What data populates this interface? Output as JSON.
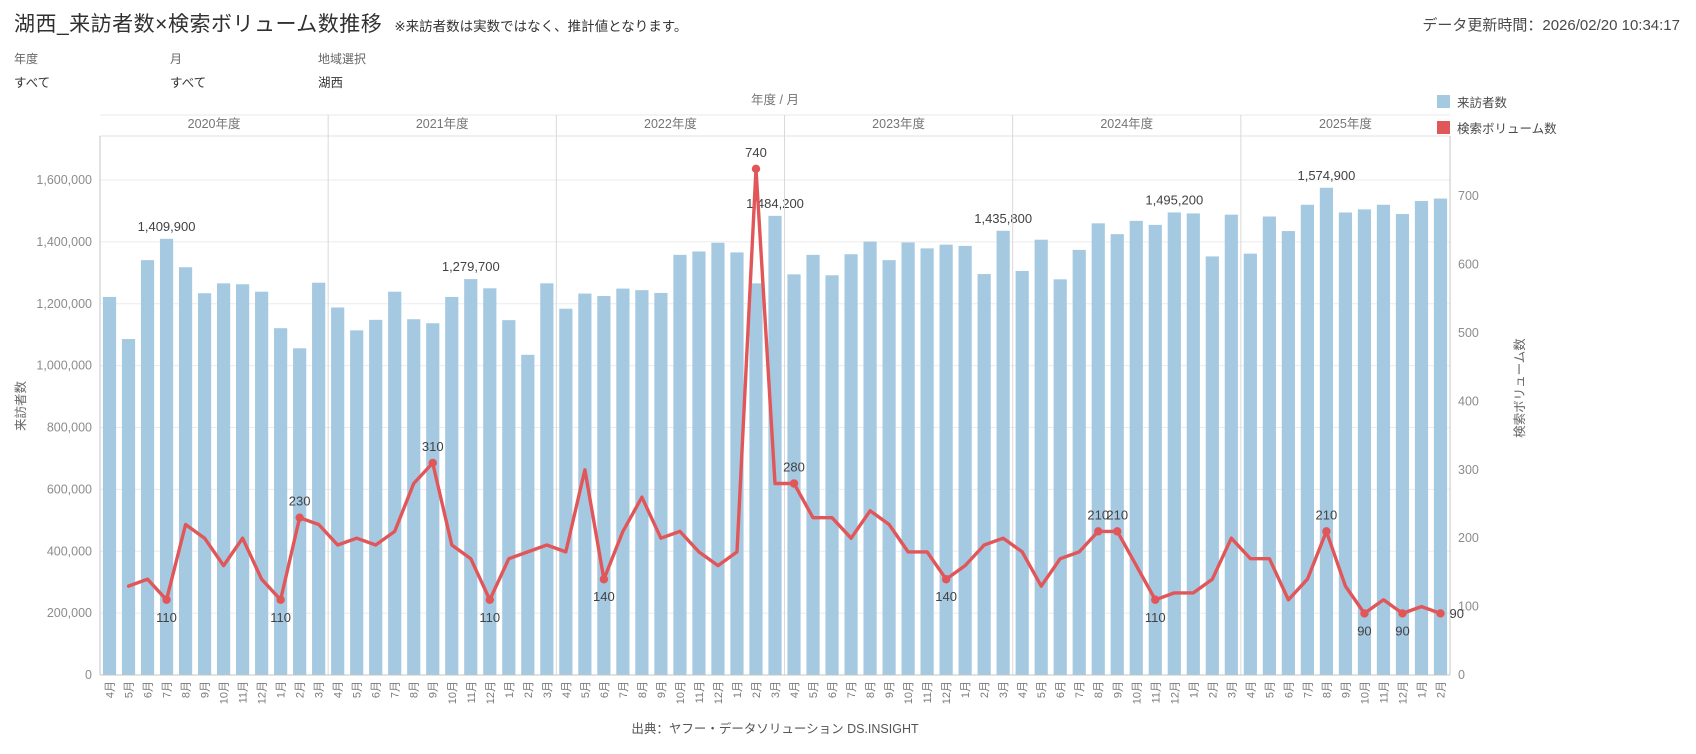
{
  "header": {
    "title": "湖西_来訪者数×検索ボリューム数推移",
    "note": "※来訪者数は実数ではなく、推計値となります。",
    "updated": "データ更新時間：2026/02/20 10:34:17"
  },
  "filters": [
    {
      "label": "年度",
      "value": "すべて"
    },
    {
      "label": "月",
      "value": "すべて"
    },
    {
      "label": "地域選択",
      "value": "湖西"
    }
  ],
  "chart_data": {
    "type": "bar+line-dual-axis",
    "column_header": "年度 / 月",
    "source": "出典：ヤフー・データソリューション DS.INSIGHT",
    "colors": {
      "bar": "#a6c9e2",
      "line": "#e15759",
      "grid": "#ebebeb",
      "axis": "#c4c4c4",
      "separator": "#d9d9d9",
      "annotation": "#424242",
      "tick_text": "#8c8c8c",
      "header_text": "#757575"
    },
    "left_axis": {
      "title": "来訪者数",
      "min": 0,
      "max": 1600000,
      "tick_step": 200000,
      "ticks": [
        "0",
        "200,000",
        "400,000",
        "600,000",
        "800,000",
        "1,000,000",
        "1,200,000",
        "1,400,000",
        "1,600,000"
      ]
    },
    "right_axis": {
      "title": "検索ボリューム数",
      "min": 0,
      "max": 740,
      "tick_step": 100,
      "ticks": [
        "0",
        "100",
        "200",
        "300",
        "400",
        "500",
        "600",
        "700"
      ]
    },
    "legend": [
      {
        "label": "来訪者数",
        "color": "#a6c9e2"
      },
      {
        "label": "検索ボリューム数",
        "color": "#e15759"
      }
    ],
    "groups": [
      {
        "year": "2020年度",
        "months": [
          "4月",
          "5月",
          "6月",
          "7月",
          "8月",
          "9月",
          "10月",
          "11月",
          "12月",
          "1月",
          "2月",
          "3月"
        ],
        "visitors": [
          1222000,
          1086000,
          1341000,
          1409900,
          1318000,
          1234000,
          1266000,
          1263000,
          1239000,
          1121000,
          1056000,
          1268000
        ],
        "search": [
          null,
          130,
          140,
          110,
          220,
          200,
          160,
          200,
          140,
          110,
          230,
          220
        ],
        "bar_labels": {
          "7月": "1,409,900"
        },
        "line_labels": [
          {
            "month": "7月",
            "text": "110",
            "pos": "below"
          },
          {
            "month": "1月",
            "text": "110",
            "pos": "below"
          },
          {
            "month": "2月",
            "text": "230",
            "pos": "above"
          }
        ]
      },
      {
        "year": "2021年度",
        "months": [
          "4月",
          "5月",
          "6月",
          "7月",
          "8月",
          "9月",
          "10月",
          "11月",
          "12月",
          "1月",
          "2月",
          "3月"
        ],
        "visitors": [
          1188000,
          1114000,
          1148000,
          1239000,
          1150000,
          1137000,
          1222000,
          1279700,
          1250000,
          1147000,
          1035000,
          1266000
        ],
        "search": [
          190,
          200,
          190,
          210,
          280,
          310,
          190,
          170,
          110,
          170,
          180,
          190
        ],
        "bar_labels": {
          "11月": "1,279,700"
        },
        "line_labels": [
          {
            "month": "9月",
            "text": "310",
            "pos": "above"
          },
          {
            "month": "12月",
            "text": "110",
            "pos": "below"
          }
        ]
      },
      {
        "year": "2022年度",
        "months": [
          "4月",
          "5月",
          "6月",
          "7月",
          "8月",
          "9月",
          "10月",
          "11月",
          "12月",
          "1月",
          "2月",
          "3月"
        ],
        "visitors": [
          1184000,
          1233000,
          1225000,
          1249000,
          1244000,
          1235000,
          1358000,
          1369000,
          1397000,
          1366000,
          1266000,
          1484200
        ],
        "search": [
          180,
          300,
          140,
          210,
          260,
          200,
          210,
          180,
          160,
          180,
          740,
          280
        ],
        "bar_labels": {
          "3月": "1,484,200"
        },
        "line_labels": [
          {
            "month": "6月",
            "text": "140",
            "pos": "below"
          },
          {
            "month": "2月",
            "text": "740",
            "pos": "above"
          }
        ]
      },
      {
        "year": "2023年度",
        "months": [
          "4月",
          "5月",
          "6月",
          "7月",
          "8月",
          "9月",
          "10月",
          "11月",
          "12月",
          "1月",
          "2月",
          "3月"
        ],
        "visitors": [
          1295000,
          1358000,
          1292000,
          1360000,
          1401000,
          1341000,
          1398000,
          1379000,
          1391000,
          1387000,
          1296000,
          1435800
        ],
        "search": [
          280,
          230,
          230,
          200,
          240,
          220,
          180,
          180,
          140,
          160,
          190,
          200
        ],
        "bar_labels": {
          "3月": "1,435,800"
        },
        "line_labels": [
          {
            "month": "4月",
            "text": "280",
            "pos": "above"
          },
          {
            "month": "12月",
            "text": "140",
            "pos": "below"
          }
        ]
      },
      {
        "year": "2024年度",
        "months": [
          "4月",
          "5月",
          "6月",
          "7月",
          "8月",
          "9月",
          "10月",
          "11月",
          "12月",
          "1月",
          "2月",
          "3月"
        ],
        "visitors": [
          1306000,
          1407000,
          1279000,
          1374000,
          1460000,
          1425000,
          1468000,
          1455000,
          1495200,
          1492000,
          1353000,
          1488000
        ],
        "search": [
          180,
          130,
          170,
          180,
          210,
          210,
          160,
          110,
          120,
          120,
          140,
          200
        ],
        "bar_labels": {
          "12月": "1,495,200"
        },
        "line_labels": [
          {
            "month": "8月",
            "text": "210",
            "pos": "above"
          },
          {
            "month": "9月",
            "text": "210",
            "pos": "above"
          },
          {
            "month": "11月",
            "text": "110",
            "pos": "below"
          }
        ]
      },
      {
        "year": "2025年度",
        "months": [
          "4月",
          "5月",
          "6月",
          "7月",
          "8月",
          "9月",
          "10月",
          "11月",
          "12月",
          "1月",
          "2月"
        ],
        "visitors": [
          1362000,
          1482000,
          1435000,
          1520000,
          1574900,
          1495000,
          1505000,
          1520000,
          1490000,
          1532000,
          1540000
        ],
        "search": [
          170,
          170,
          110,
          140,
          210,
          130,
          90,
          110,
          90,
          100,
          90
        ],
        "bar_labels": {
          "8月": "1,574,900"
        },
        "line_labels": [
          {
            "month": "8月",
            "text": "210",
            "pos": "above"
          },
          {
            "month": "10月",
            "text": "90",
            "pos": "below"
          },
          {
            "month": "12月",
            "text": "90",
            "pos": "below"
          },
          {
            "month": "2月",
            "text": "90",
            "pos": "right"
          }
        ]
      }
    ]
  }
}
